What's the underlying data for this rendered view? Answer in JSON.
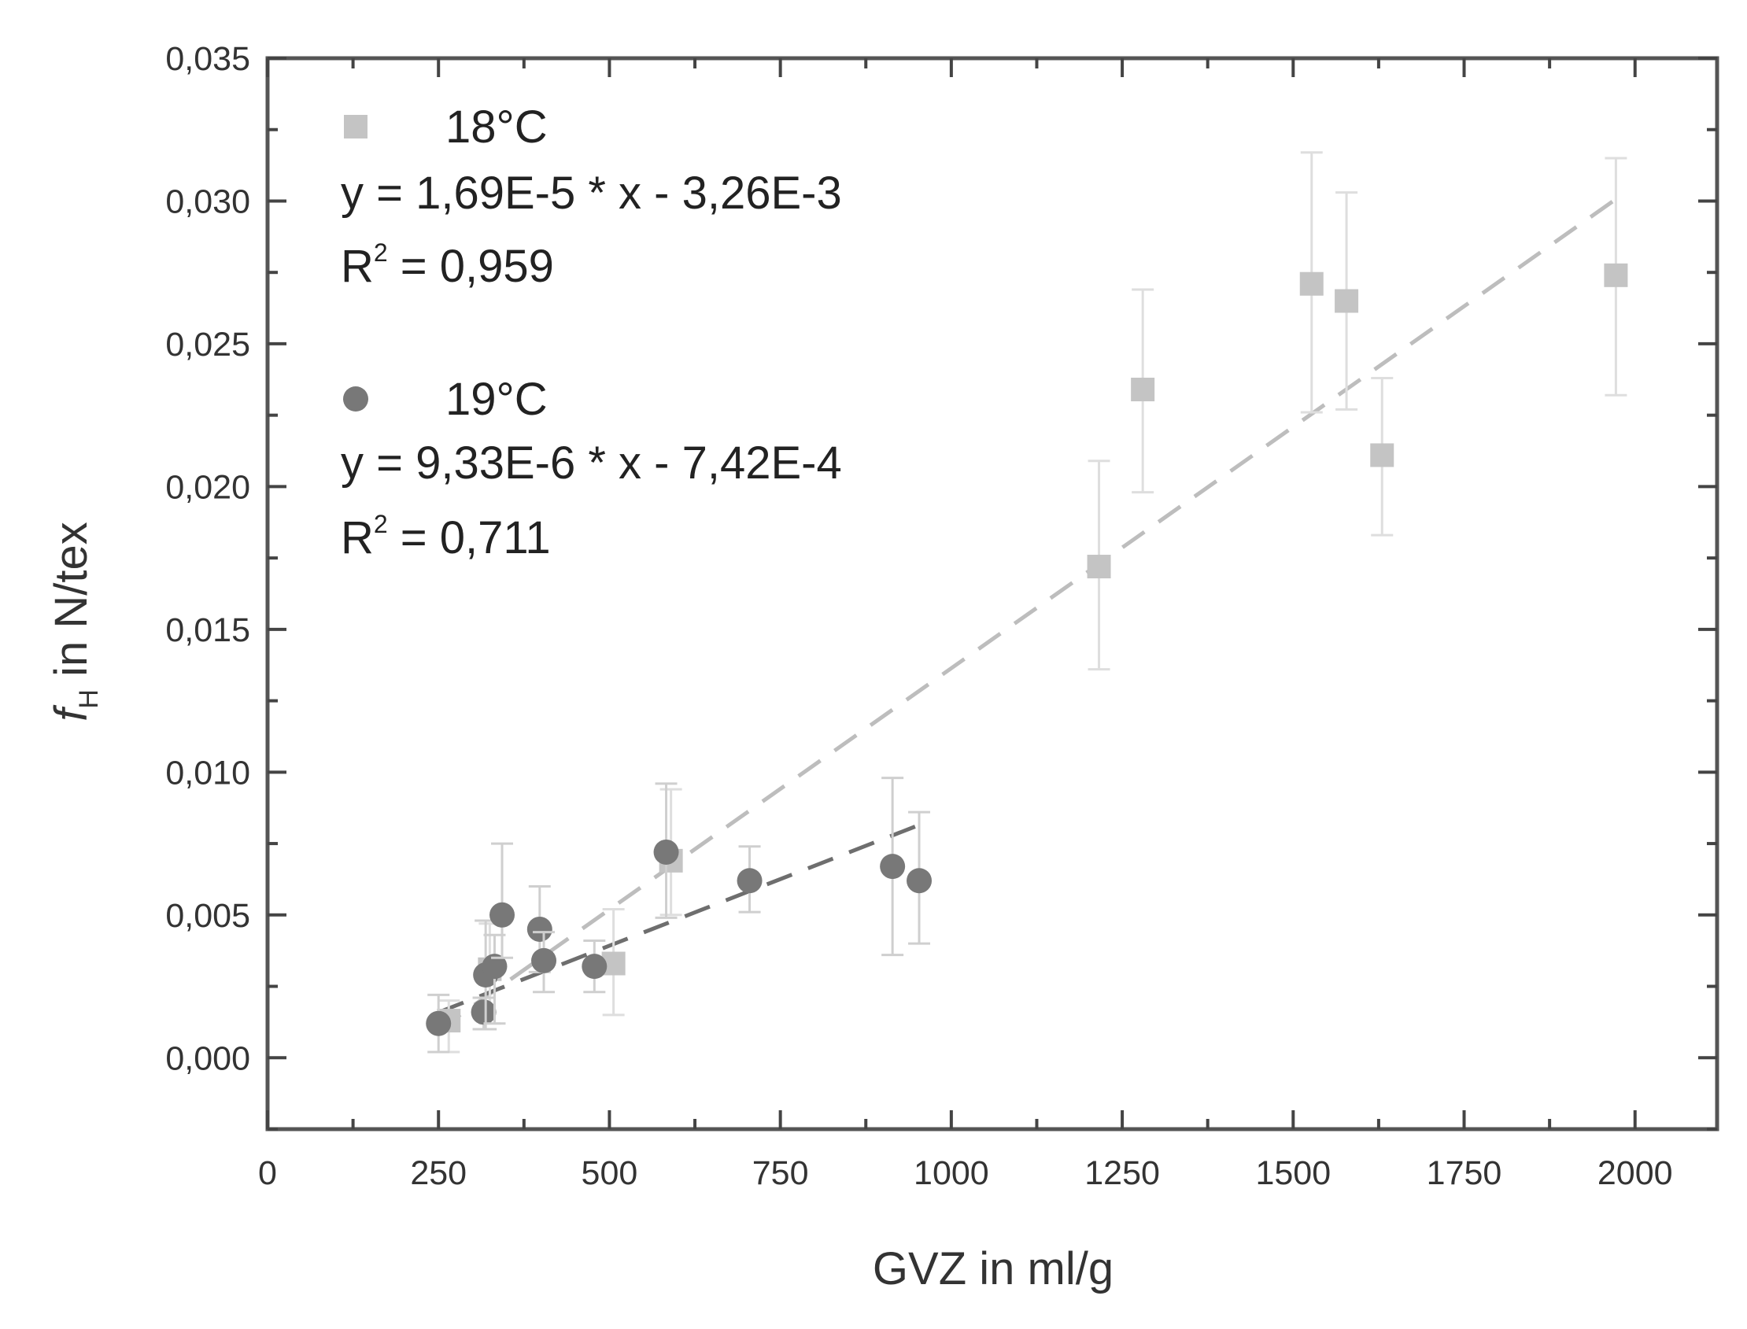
{
  "chart_data": {
    "type": "scatter",
    "xlabel": "GVZ in ml/g",
    "ylabel": {
      "symbol": "f",
      "subscript": "H",
      "rest": " in N/tex"
    },
    "xlim": [
      0,
      2120
    ],
    "ylim": [
      -0.0025,
      0.035
    ],
    "x_ticks": [
      0,
      250,
      500,
      750,
      1000,
      1250,
      1500,
      1750,
      2000
    ],
    "x_tick_labels": [
      "0",
      "250",
      "500",
      "750",
      "1000",
      "1250",
      "1500",
      "1750",
      "2000"
    ],
    "y_ticks": [
      0,
      0.005,
      0.01,
      0.015,
      0.02,
      0.025,
      0.03,
      0.035
    ],
    "y_tick_labels": [
      "0,000",
      "0,005",
      "0,010",
      "0,015",
      "0,020",
      "0,025",
      "0,030",
      "0,035"
    ],
    "x_minor_step": 125,
    "y_minor_step": 0.0025,
    "grid": false,
    "legend_placement": "top-left",
    "series": [
      {
        "name": "18°C",
        "marker": "square",
        "color": "#c4c4c4",
        "error_color": "#dedede",
        "equation": "y = 1,69E-5 * x - 3,26E-3",
        "r2_value": "0,959",
        "fit": {
          "slope": 1.69e-05,
          "intercept": -0.00326,
          "x_range": [
            250,
            1975
          ],
          "color": "#bdbdbd"
        },
        "points": [
          {
            "x": 265,
            "y": 0.0013,
            "err_low": 0.0002,
            "err_high": 0.002
          },
          {
            "x": 325,
            "y": 0.0031,
            "err_low": 0.0012,
            "err_high": 0.0047
          },
          {
            "x": 506,
            "y": 0.0033,
            "err_low": 0.0015,
            "err_high": 0.0052
          },
          {
            "x": 590,
            "y": 0.0069,
            "err_low": 0.005,
            "err_high": 0.0094
          },
          {
            "x": 1216,
            "y": 0.0172,
            "err_low": 0.0136,
            "err_high": 0.0209
          },
          {
            "x": 1280,
            "y": 0.0234,
            "err_low": 0.0198,
            "err_high": 0.0269
          },
          {
            "x": 1527,
            "y": 0.0271,
            "err_low": 0.0226,
            "err_high": 0.0317
          },
          {
            "x": 1578,
            "y": 0.0265,
            "err_low": 0.0227,
            "err_high": 0.0303
          },
          {
            "x": 1630,
            "y": 0.0211,
            "err_low": 0.0183,
            "err_high": 0.0238
          },
          {
            "x": 1972,
            "y": 0.0274,
            "err_low": 0.0232,
            "err_high": 0.0315
          }
        ]
      },
      {
        "name": "19°C",
        "marker": "circle",
        "color": "#787878",
        "error_color": "#cfcfcf",
        "equation": "y = 9,33E-6 * x - 7,42E-4",
        "r2_value": "0,711",
        "fit": {
          "slope": 9.33e-06,
          "intercept": -0.000742,
          "x_range": [
            250,
            950
          ],
          "color": "#6e6e6e"
        },
        "points": [
          {
            "x": 250,
            "y": 0.0012,
            "err_low": 0.0002,
            "err_high": 0.0022
          },
          {
            "x": 316,
            "y": 0.0016,
            "err_low": 0.001,
            "err_high": 0.0021
          },
          {
            "x": 319,
            "y": 0.0029,
            "err_low": 0.001,
            "err_high": 0.0048
          },
          {
            "x": 332,
            "y": 0.0032,
            "err_low": 0.0012,
            "err_high": 0.0043
          },
          {
            "x": 343,
            "y": 0.005,
            "err_low": 0.0035,
            "err_high": 0.0075
          },
          {
            "x": 398,
            "y": 0.0045,
            "err_low": 0.003,
            "err_high": 0.006
          },
          {
            "x": 404,
            "y": 0.0034,
            "err_low": 0.0023,
            "err_high": 0.0044
          },
          {
            "x": 478,
            "y": 0.0032,
            "err_low": 0.0023,
            "err_high": 0.0041
          },
          {
            "x": 583,
            "y": 0.0072,
            "err_low": 0.0049,
            "err_high": 0.0096
          },
          {
            "x": 705,
            "y": 0.0062,
            "err_low": 0.0051,
            "err_high": 0.0074
          },
          {
            "x": 914,
            "y": 0.0067,
            "err_low": 0.0036,
            "err_high": 0.0098
          },
          {
            "x": 953,
            "y": 0.0062,
            "err_low": 0.004,
            "err_high": 0.0086
          }
        ]
      }
    ]
  }
}
